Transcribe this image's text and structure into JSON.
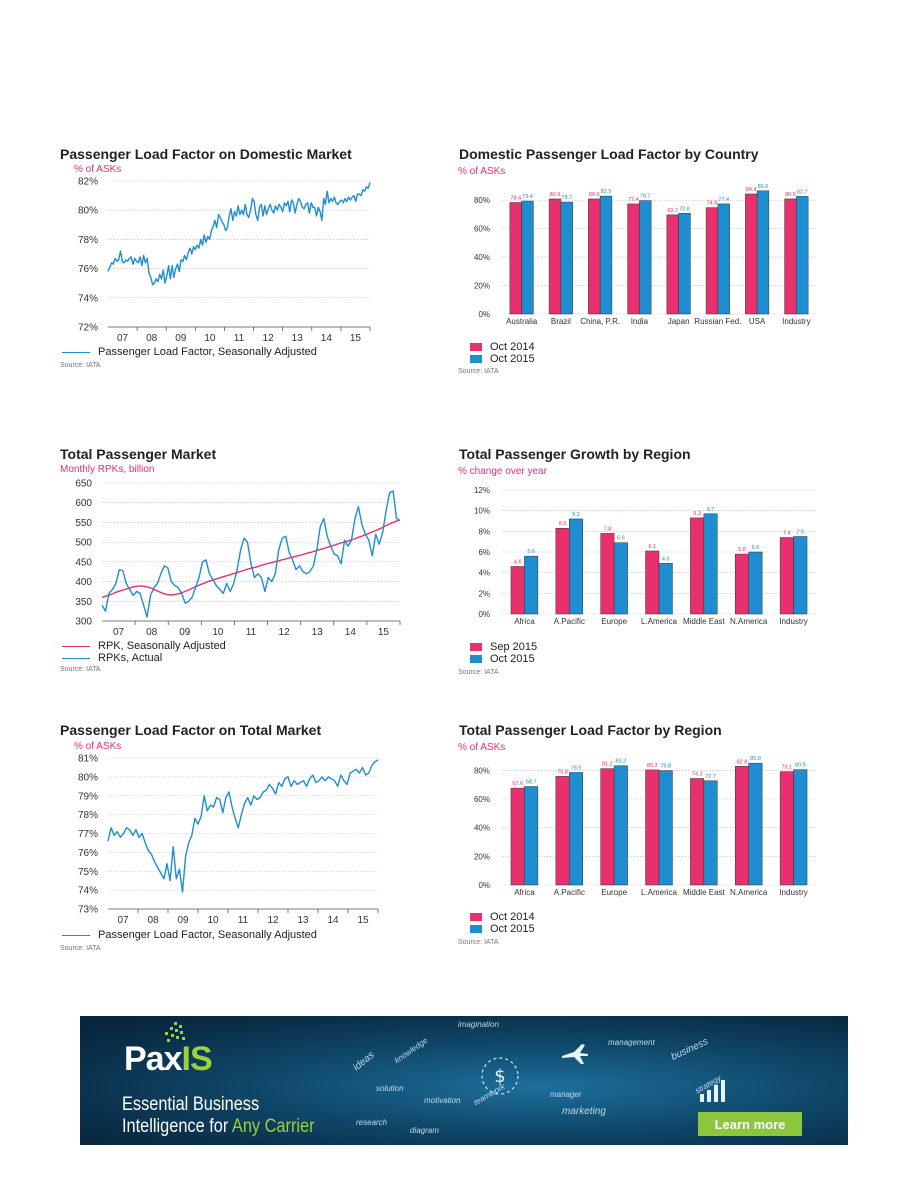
{
  "chart_data": [
    {
      "id": "c1",
      "type": "line",
      "title": "Passenger Load Factor on Domestic Market",
      "ylabel": "% of ASKs",
      "ylim": [
        72,
        82
      ],
      "yticks": [
        "72%",
        "74%",
        "76%",
        "78%",
        "80%",
        "82%"
      ],
      "xticks": [
        "07",
        "08",
        "09",
        "10",
        "11",
        "12",
        "13",
        "14",
        "15"
      ],
      "series": [
        {
          "name": "Passenger Load Factor, Seasonally Adjusted",
          "color": "#1e8ed0",
          "values": [
            75.8,
            76.1,
            76.4,
            76.3,
            76.7,
            76.5,
            76.6,
            77.2,
            76.5,
            76.4,
            76.6,
            76.5,
            76.7,
            76.8,
            76.3,
            76.7,
            76.5,
            76.4,
            76.8,
            76.2,
            76.9,
            76.4,
            76.7,
            75.7,
            75.4,
            74.9,
            75.0,
            75.3,
            75.1,
            75.6,
            75.3,
            75.9,
            75.0,
            75.5,
            76.2,
            75.3,
            76.2,
            75.4,
            76.0,
            76.3,
            75.8,
            76.6,
            76.5,
            76.9,
            76.6,
            77.1,
            77.4,
            77.0,
            77.5,
            77.3,
            77.6,
            77.4,
            78.0,
            77.6,
            78.3,
            77.8,
            78.2,
            78.0,
            78.6,
            78.9,
            79.3,
            78.8,
            79.7,
            79.5,
            79.2,
            79.0,
            78.6,
            78.8,
            79.6,
            80.1,
            79.3,
            79.9,
            79.6,
            80.3,
            79.7,
            80.0,
            79.7,
            80.4,
            79.7,
            79.5,
            80.0,
            80.8,
            80.6,
            79.7,
            79.3,
            80.2,
            80.4,
            79.6,
            80.3,
            79.7,
            80.1,
            80.4,
            80.0,
            79.8,
            80.3,
            80.0,
            80.4,
            80.2,
            79.9,
            80.5,
            80.3,
            80.6,
            79.9,
            80.7,
            80.5,
            79.8,
            80.4,
            80.8,
            80.6,
            80.2,
            80.1,
            80.4,
            80.5,
            79.8,
            80.5,
            80.2,
            80.2,
            79.6,
            80.2,
            79.9,
            79.3,
            80.8,
            80.4,
            81.3,
            80.5,
            80.8,
            80.6,
            80.9,
            80.5,
            80.4,
            80.6,
            80.7,
            80.5,
            80.8,
            80.6,
            80.9,
            80.7,
            80.9,
            81.0,
            80.6,
            81.1,
            81.1,
            81.0,
            81.4,
            81.3,
            81.6,
            81.5,
            81.9
          ]
        }
      ]
    },
    {
      "id": "c2",
      "type": "bar",
      "title": "Domestic Passenger Load Factor by Country",
      "ylabel": "% of ASKs",
      "ylim": [
        0,
        90
      ],
      "yticks": [
        "0%",
        "20%",
        "40%",
        "60%",
        "80%"
      ],
      "categories": [
        "Australia",
        "Brazil",
        "China, P.R.",
        "India",
        "Japan",
        "Russian Fed.",
        "USA",
        "Industry"
      ],
      "series": [
        {
          "name": "Oct 2014",
          "color": "#e8306e",
          "values": [
            78.4,
            80.9,
            80.9,
            77.4,
            69.7,
            74.8,
            84.4,
            80.9
          ]
        },
        {
          "name": "Oct 2015",
          "color": "#1e8ed0",
          "values": [
            79.4,
            78.7,
            82.9,
            79.7,
            70.8,
            77.4,
            86.6,
            82.7
          ]
        }
      ]
    },
    {
      "id": "c3",
      "type": "line",
      "title": "Total Passenger Market",
      "ylabel": "Monthly RPKs, billion",
      "ylim": [
        300,
        650
      ],
      "yticks": [
        "300",
        "350",
        "400",
        "450",
        "500",
        "550",
        "600",
        "650"
      ],
      "xticks": [
        "07",
        "08",
        "09",
        "10",
        "11",
        "12",
        "13",
        "14",
        "15"
      ],
      "series": [
        {
          "name": "RPK, Seasonally Adjusted",
          "color": "#e8306e",
          "values": [
            360,
            363,
            366,
            370,
            374,
            377,
            380,
            383,
            386,
            388,
            389,
            388,
            386,
            383,
            378,
            374,
            370,
            367,
            366,
            367,
            369,
            372,
            376,
            380,
            385,
            389,
            393,
            397,
            401,
            404,
            407,
            410,
            413,
            416,
            419,
            422,
            425,
            428,
            431,
            434,
            436,
            439,
            442,
            445,
            447,
            450,
            452,
            455,
            457,
            460,
            462,
            465,
            467,
            470,
            473,
            475,
            478,
            481,
            484,
            487,
            490,
            493,
            496,
            499,
            502,
            505,
            508,
            512,
            515,
            519,
            523,
            527,
            531,
            535,
            540,
            545,
            549,
            553,
            556
          ]
        },
        {
          "name": "RPKs, Actual",
          "color": "#1e8ed0",
          "values": [
            340,
            325,
            370,
            380,
            395,
            430,
            428,
            395,
            380,
            365,
            375,
            370,
            340,
            310,
            365,
            385,
            395,
            420,
            440,
            435,
            400,
            390,
            385,
            370,
            345,
            350,
            360,
            385,
            410,
            450,
            455,
            420,
            405,
            390,
            380,
            370,
            395,
            375,
            395,
            430,
            480,
            510,
            500,
            445,
            410,
            420,
            410,
            375,
            410,
            400,
            420,
            480,
            510,
            515,
            475,
            455,
            430,
            440,
            425,
            420,
            425,
            440,
            480,
            540,
            560,
            515,
            490,
            470,
            465,
            445,
            505,
            490,
            505,
            560,
            590,
            545,
            520,
            505,
            465,
            520,
            495,
            525,
            580,
            625,
            630,
            560,
            555
          ]
        }
      ]
    },
    {
      "id": "c4",
      "type": "bar",
      "title": "Total Passenger Growth by Region",
      "ylabel": "% change over year",
      "ylim": [
        0,
        12
      ],
      "yticks": [
        "0%",
        "2%",
        "4%",
        "6%",
        "8%",
        "10%",
        "12%"
      ],
      "categories": [
        "Africa",
        "A.Pacific",
        "Europe",
        "L.America",
        "Middle East",
        "N.America",
        "Industry"
      ],
      "series": [
        {
          "name": "Sep 2015",
          "color": "#e8306e",
          "values": [
            4.6,
            8.3,
            7.8,
            6.1,
            9.3,
            5.8,
            7.4
          ]
        },
        {
          "name": "Oct 2015",
          "color": "#1e8ed0",
          "values": [
            5.6,
            9.2,
            6.9,
            4.9,
            9.7,
            6.0,
            7.5
          ]
        }
      ]
    },
    {
      "id": "c5",
      "type": "line",
      "title": "Passenger Load Factor on Total Market",
      "ylabel": "% of ASKs",
      "ylim": [
        73,
        81
      ],
      "yticks": [
        "73%",
        "74%",
        "75%",
        "76%",
        "77%",
        "78%",
        "79%",
        "80%",
        "81%"
      ],
      "xticks": [
        "07",
        "08",
        "09",
        "10",
        "11",
        "12",
        "13",
        "14",
        "15"
      ],
      "series": [
        {
          "name": "Passenger Load Factor, Seasonally Adjusted",
          "color": "#1e8ed0",
          "values": [
            76.6,
            77.3,
            76.9,
            77.1,
            76.8,
            77.0,
            77.3,
            77.2,
            76.9,
            77.2,
            76.8,
            77.0,
            76.5,
            76.1,
            75.9,
            75.5,
            75.2,
            74.9,
            74.6,
            75.4,
            74.5,
            76.3,
            74.6,
            75.1,
            73.9,
            75.8,
            76.5,
            76.9,
            77.8,
            77.5,
            77.9,
            79.0,
            78.2,
            78.5,
            78.4,
            78.9,
            78.8,
            78.1,
            78.9,
            79.2,
            78.4,
            77.8,
            77.3,
            78.0,
            78.6,
            78.9,
            78.5,
            79.0,
            78.8,
            78.9,
            79.2,
            79.3,
            79.6,
            79.4,
            79.1,
            79.7,
            79.5,
            79.9,
            80.0,
            79.5,
            79.8,
            79.6,
            79.7,
            79.8,
            79.5,
            79.9,
            80.1,
            79.7,
            79.8,
            80.0,
            79.8,
            80.0,
            79.9,
            79.8,
            79.5,
            80.1,
            79.8,
            79.6,
            80.2,
            80.3,
            80.4,
            80.2,
            80.5,
            80.1,
            80.2,
            80.6,
            80.8,
            80.9
          ]
        }
      ]
    },
    {
      "id": "c6",
      "type": "bar",
      "title": "Total Passenger Load Factor by Region",
      "ylabel": "% of ASKs",
      "ylim": [
        0,
        90
      ],
      "yticks": [
        "0%",
        "20%",
        "40%",
        "60%",
        "80%"
      ],
      "categories": [
        "Africa",
        "A.Pacific",
        "Europe",
        "L.America",
        "Middle East",
        "N.America",
        "Industry"
      ],
      "series": [
        {
          "name": "Oct 2014",
          "color": "#e8306e",
          "values": [
            67.6,
            75.8,
            81.2,
            80.3,
            74.3,
            82.8,
            79.1
          ]
        },
        {
          "name": "Oct 2015",
          "color": "#1e8ed0",
          "values": [
            68.7,
            78.5,
            83.2,
            79.8,
            72.7,
            85.0,
            80.5
          ]
        }
      ]
    }
  ],
  "sources": [
    "Source: IATA",
    "Source: IATA",
    "Source: IATA",
    "Source: IATA",
    "Source: IATA",
    "Source: IATA"
  ],
  "banner": {
    "logo_a": "Pax",
    "logo_b": "IS",
    "tagline_1": "Essential Business",
    "tagline_2a": "Intelligence for ",
    "tagline_2b": "Any Carrier",
    "button": "Learn more",
    "words": [
      "imagination",
      "ideas",
      "knowledge",
      "solution",
      "motivation",
      "teamwork",
      "research",
      "diagram",
      "manager",
      "marketing",
      "management",
      "business",
      "strategy"
    ]
  }
}
